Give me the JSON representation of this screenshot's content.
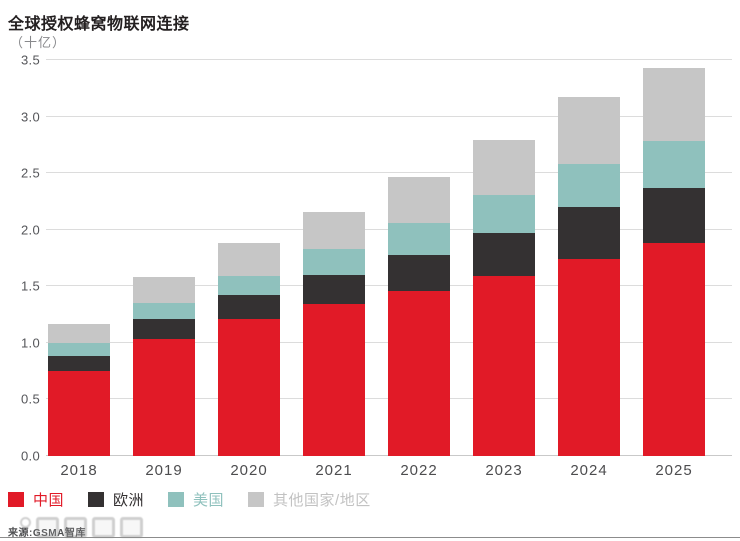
{
  "header": {
    "title": "全球授权蜂窝物联网连接",
    "unit": "（十亿）"
  },
  "chart_data": {
    "type": "bar",
    "stacked": true,
    "title": "全球授权蜂窝物联网连接",
    "ylabel": "（十亿）",
    "xlabel": "",
    "ylim": [
      0,
      3.5
    ],
    "ytick_step": 0.5,
    "yticks": [
      "0.0",
      "0.5",
      "1.0",
      "1.5",
      "2.0",
      "2.5",
      "3.0",
      "3.5"
    ],
    "grid": true,
    "legend_position": "bottom",
    "categories": [
      "2018",
      "2019",
      "2020",
      "2021",
      "2022",
      "2023",
      "2024",
      "2025"
    ],
    "series": [
      {
        "name": "中国",
        "color": "#e11a27",
        "values": [
          0.75,
          1.03,
          1.21,
          1.34,
          1.46,
          1.59,
          1.74,
          1.88
        ]
      },
      {
        "name": "欧洲",
        "color": "#343132",
        "values": [
          0.13,
          0.18,
          0.21,
          0.26,
          0.32,
          0.38,
          0.46,
          0.49
        ]
      },
      {
        "name": "美国",
        "color": "#8fc1bd",
        "values": [
          0.12,
          0.14,
          0.17,
          0.23,
          0.28,
          0.34,
          0.38,
          0.41
        ]
      },
      {
        "name": "其他国家/地区",
        "color": "#c6c6c6",
        "values": [
          0.17,
          0.23,
          0.29,
          0.33,
          0.41,
          0.48,
          0.59,
          0.65
        ]
      }
    ],
    "totals": [
      1.17,
      1.58,
      1.88,
      2.16,
      2.47,
      2.79,
      3.17,
      3.43
    ]
  },
  "legend": {
    "label_colors": [
      "#e11a27",
      "#343132",
      "#8fc1bd",
      "#c2c2c2"
    ]
  },
  "footer": {
    "source": "来源:GSMA智库"
  }
}
